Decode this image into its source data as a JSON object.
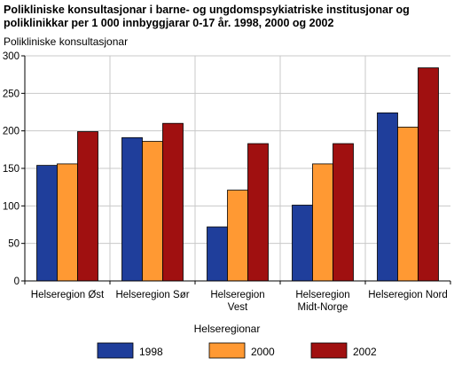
{
  "chart_data": {
    "type": "bar",
    "title_lines": [
      "Polikliniske konsultasjonar i barne- og ungdomspsykiatriske institusjonar og",
      "poliklinikkar per 1 000 innbyggjarar 0-17 år. 1998, 2000 og 2002"
    ],
    "ylabel": "Polikliniske konsultasjonar",
    "xlabel": "Helseregionar",
    "ylim": [
      0,
      300
    ],
    "yticks": [
      0,
      50,
      100,
      150,
      200,
      250,
      300
    ],
    "grid": true,
    "legend_position": "bottom",
    "categories": [
      [
        "Helseregion Øst"
      ],
      [
        "Helseregion Sør"
      ],
      [
        "Helseregion",
        "Vest"
      ],
      [
        "Helseregion",
        "Midt-Norge"
      ],
      [
        "Helseregion Nord"
      ]
    ],
    "series": [
      {
        "name": "1998",
        "color": "#1f3e9b",
        "values": [
          154,
          191,
          72,
          101,
          224
        ]
      },
      {
        "name": "2000",
        "color": "#ff9933",
        "values": [
          156,
          186,
          121,
          156,
          205
        ]
      },
      {
        "name": "2002",
        "color": "#a01010",
        "values": [
          199,
          210,
          183,
          183,
          284
        ]
      }
    ]
  }
}
